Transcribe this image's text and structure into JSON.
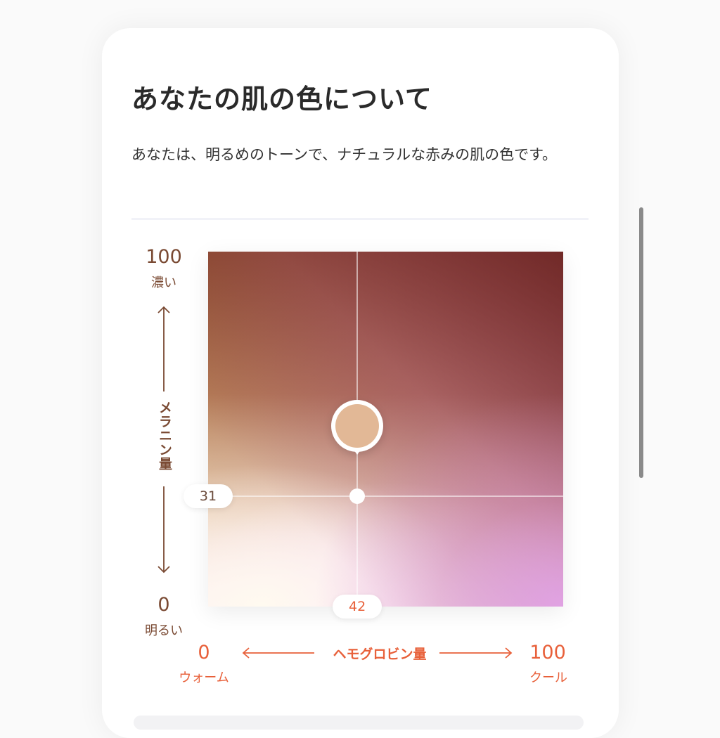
{
  "card": {
    "title": "あなたの肌の色について",
    "description": "あなたは、明るめのトーンで、ナチュラルな赤みの肌の色です。"
  },
  "chart_data": {
    "type": "scatter",
    "title": "",
    "ylabel": "メラニン量",
    "xlabel": "ヘモグロビン量",
    "y_axis": {
      "min": 0,
      "max": 100,
      "min_label": "明るい",
      "max_label": "濃い",
      "min_text": "0",
      "max_text": "100"
    },
    "x_axis": {
      "min": 0,
      "max": 100,
      "min_label": "ウォーム",
      "max_label": "クール",
      "min_text": "0",
      "max_text": "100"
    },
    "point": {
      "x": 42,
      "y": 31,
      "x_text": "42",
      "y_text": "31",
      "swatch_color": "#e2b896"
    },
    "colors": {
      "y_axis": "#7a4a33",
      "x_axis": "#e8603a",
      "top_left": "#8a4a2a",
      "top_right": "#6a2a1e",
      "bottom_left": "#fff6ea",
      "bottom_right": "#e0a0e6"
    }
  }
}
